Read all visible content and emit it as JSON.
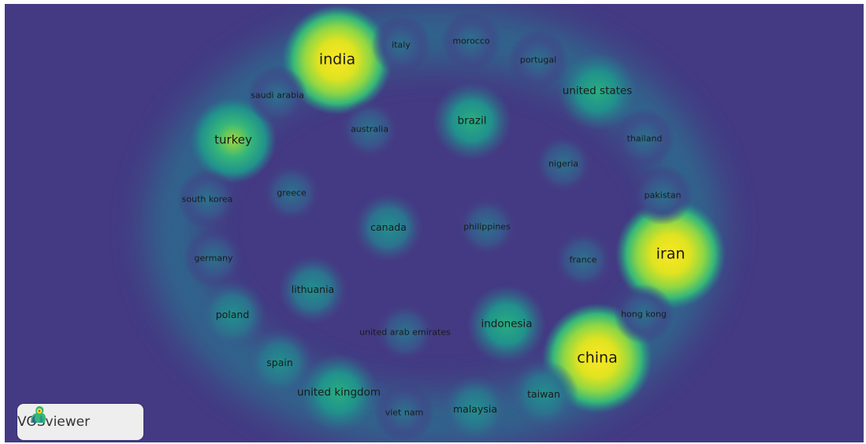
{
  "view": "density-visualization",
  "colors": {
    "background": "#443a83",
    "scale": [
      "#443a83",
      "#31688e",
      "#21918c",
      "#35b779",
      "#8fd744",
      "#fde725"
    ]
  },
  "nodes": [
    {
      "id": "india",
      "label": "india",
      "density": 1.0
    },
    {
      "id": "china",
      "label": "china",
      "density": 0.95
    },
    {
      "id": "iran",
      "label": "iran",
      "density": 0.85
    },
    {
      "id": "turkey",
      "label": "turkey",
      "density": 0.6
    },
    {
      "id": "united-states",
      "label": "united states",
      "density": 0.4
    },
    {
      "id": "brazil",
      "label": "brazil",
      "density": 0.4
    },
    {
      "id": "indonesia",
      "label": "indonesia",
      "density": 0.4
    },
    {
      "id": "united-kingdom",
      "label": "united kingdom",
      "density": 0.35
    },
    {
      "id": "spain",
      "label": "spain",
      "density": 0.3
    },
    {
      "id": "taiwan",
      "label": "taiwan",
      "density": 0.3
    },
    {
      "id": "malaysia",
      "label": "malaysia",
      "density": 0.3
    },
    {
      "id": "poland",
      "label": "poland",
      "density": 0.25
    },
    {
      "id": "canada",
      "label": "canada",
      "density": 0.25
    },
    {
      "id": "lithuania",
      "label": "lithuania",
      "density": 0.25
    },
    {
      "id": "greece",
      "label": "greece",
      "density": 0.2
    },
    {
      "id": "south-korea",
      "label": "south korea",
      "density": 0.2
    },
    {
      "id": "germany",
      "label": "germany",
      "density": 0.2
    },
    {
      "id": "saudi-arabia",
      "label": "saudi arabia",
      "density": 0.2
    },
    {
      "id": "australia",
      "label": "australia",
      "density": 0.2
    },
    {
      "id": "italy",
      "label": "italy",
      "density": 0.2
    },
    {
      "id": "morocco",
      "label": "morocco",
      "density": 0.2
    },
    {
      "id": "portugal",
      "label": "portugal",
      "density": 0.2
    },
    {
      "id": "thailand",
      "label": "thailand",
      "density": 0.2
    },
    {
      "id": "nigeria",
      "label": "nigeria",
      "density": 0.2
    },
    {
      "id": "pakistan",
      "label": "pakistan",
      "density": 0.2
    },
    {
      "id": "philippines",
      "label": "philippines",
      "density": 0.2
    },
    {
      "id": "france",
      "label": "france",
      "density": 0.2
    },
    {
      "id": "hong-kong",
      "label": "hong kong",
      "density": 0.2
    },
    {
      "id": "united-arab-emirates",
      "label": "united arab emirates",
      "density": 0.2
    },
    {
      "id": "viet-nam",
      "label": "viet nam",
      "density": 0.2
    }
  ],
  "logo": {
    "text": "VOSviewer",
    "icon": "vosviewer-logo-icon"
  }
}
